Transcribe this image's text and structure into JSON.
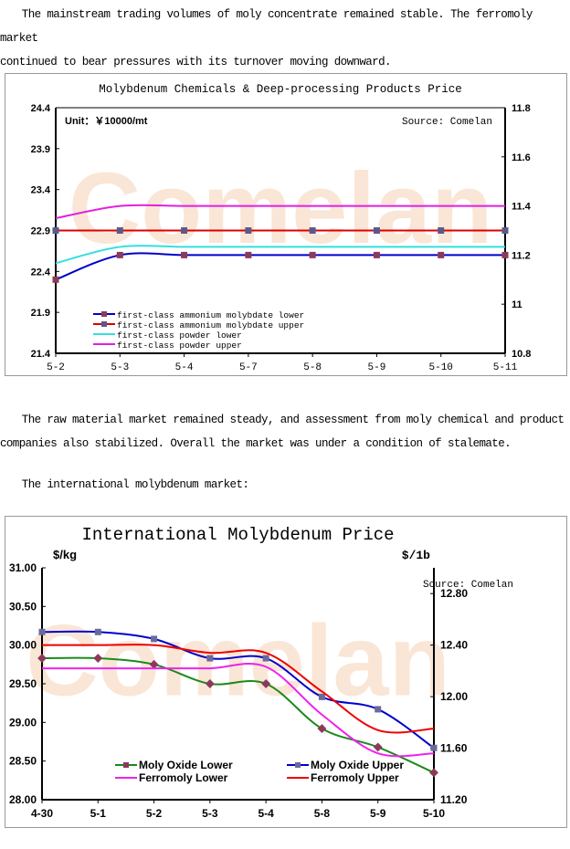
{
  "para1": [
    "　　The mainstream trading volumes of moly concentrate remained stable. The ferromoly market",
    "continued to bear pressures with its turnover moving downward."
  ],
  "para2": [
    "　　The raw material market remained steady, and assessment from moly chemical and product",
    "companies also stabilized. Overall the market was under a condition of stalemate."
  ],
  "para3": "　　The international molybdenum market:",
  "watermark": "Comelan.com 亿览网",
  "chart_data": [
    {
      "type": "line",
      "title": "Molybdenum Chemicals & Deep-processing Products Price",
      "unit": "Unit：￥10000/mt",
      "source": "Source: Comelan",
      "categories": [
        "5-2",
        "5-3",
        "5-4",
        "5-7",
        "5-8",
        "5-9",
        "5-10",
        "5-11"
      ],
      "ylim": [
        21.4,
        24.4
      ],
      "yticks": [
        "24.4",
        "23.9",
        "23.4",
        "22.9",
        "22.4",
        "21.9",
        "21.4"
      ],
      "y2lim": [
        10.8,
        11.8
      ],
      "y2ticks": [
        "11.8",
        "11.6",
        "11.4",
        "11.2",
        "11",
        "10.8"
      ],
      "legend": "bottom-left",
      "series": [
        {
          "name": "first-class ammonium molybdate lower",
          "color": "#0000cc",
          "marker": "#8b3a5a",
          "values": [
            22.3,
            22.6,
            22.6,
            22.6,
            22.6,
            22.6,
            22.6,
            22.6
          ]
        },
        {
          "name": "first-class ammonium molybdate upper",
          "color": "#dd0000",
          "marker": "#5a5a8a",
          "values": [
            22.9,
            22.9,
            22.9,
            22.9,
            22.9,
            22.9,
            22.9,
            22.9
          ]
        },
        {
          "name": "first-class powder lower",
          "color": "#33e0e0",
          "marker": null,
          "values": [
            22.5,
            22.7,
            22.7,
            22.7,
            22.7,
            22.7,
            22.7,
            22.7
          ]
        },
        {
          "name": "first-class powder upper",
          "color": "#e020e0",
          "marker": null,
          "values": [
            23.05,
            23.2,
            23.2,
            23.2,
            23.2,
            23.2,
            23.2,
            23.2
          ]
        }
      ]
    },
    {
      "type": "line",
      "title": "International Molybdenum Price",
      "ylabel": "$/kg",
      "y2label": "$/1b",
      "source": "Source: Comelan",
      "categories": [
        "4-30",
        "5-1",
        "5-2",
        "5-3",
        "5-4",
        "5-8",
        "5-9",
        "5-10"
      ],
      "ylim": [
        28,
        31
      ],
      "yticks": [
        "31.00",
        "30.50",
        "30.00",
        "29.50",
        "29.00",
        "28.50",
        "28.00"
      ],
      "y2lim": [
        11.2,
        13.0
      ],
      "y2ticks": [
        "12.80",
        "12.40",
        "12.00",
        "11.60",
        "11.20"
      ],
      "legend": "bottom",
      "series": [
        {
          "name": "Moly Oxide Lower",
          "color": "#1a8a1a",
          "marker": "#8b3a5a",
          "values": [
            29.83,
            29.83,
            29.75,
            29.5,
            29.5,
            28.92,
            28.68,
            28.35
          ]
        },
        {
          "name": "Moly Oxide Upper",
          "color": "#0000cc",
          "marker": "#6a6a9a",
          "values": [
            30.17,
            30.17,
            30.08,
            29.83,
            29.83,
            29.33,
            29.17,
            28.67
          ]
        },
        {
          "name": "Ferromoly Lower",
          "color": "#ee22ee",
          "marker": null,
          "values": [
            29.7,
            29.7,
            29.7,
            29.7,
            29.72,
            29.1,
            28.6,
            28.6
          ]
        },
        {
          "name": "Ferromoly Upper",
          "color": "#ee0000",
          "marker": null,
          "values": [
            30.0,
            30.0,
            30.0,
            29.9,
            29.9,
            29.4,
            28.9,
            28.92
          ]
        }
      ]
    }
  ]
}
